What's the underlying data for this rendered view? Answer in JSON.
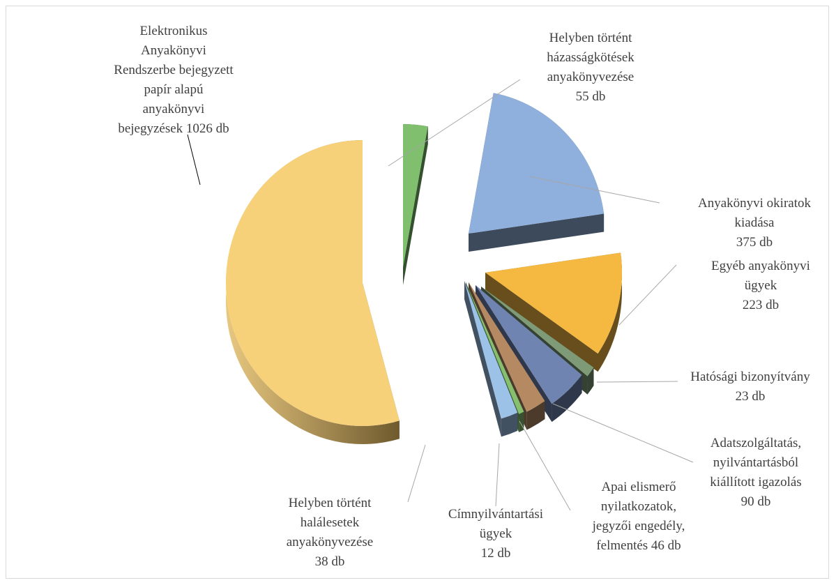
{
  "chart_data": {
    "type": "pie",
    "style": "3d-exploded",
    "legend": "none",
    "slices": [
      {
        "lines": [
          "Helyben történt",
          "házasságkötések",
          "anyakönyvezése",
          "55 db"
        ],
        "value": 55,
        "color": "#7fbf6e"
      },
      {
        "lines": [
          "Anyakönyvi okiratok",
          "kiadása",
          "375 db"
        ],
        "value": 375,
        "color": "#8fb0dc"
      },
      {
        "lines": [
          "Egyéb anyakönyvi",
          "ügyek",
          "223 db"
        ],
        "value": 223,
        "color": "#f5b942"
      },
      {
        "lines": [
          "Hatósági bizonyítvány",
          "23 db"
        ],
        "value": 23,
        "color": "#7f9a76"
      },
      {
        "lines": [
          "Adatszolgáltatás,",
          "nyilvántartásból",
          "kiállított igazolás",
          "90 db"
        ],
        "value": 90,
        "color": "#6f84b0"
      },
      {
        "lines": [
          "Apai elismerő",
          "nyilatkozatok,",
          "jegyzői engedély,",
          "felmentés 46 db"
        ],
        "value": 46,
        "color": "#b58a63"
      },
      {
        "lines": [
          "Címnyilvántartási",
          "ügyek",
          "12 db"
        ],
        "value": 12,
        "color": "#86c06f"
      },
      {
        "lines": [
          "Helyben történt",
          "halálesetek",
          "anyakönyvezése",
          "38 db"
        ],
        "value": 38,
        "color": "#9dc2e8"
      },
      {
        "lines": [
          "Elektronikus",
          "Anyakönyvi",
          "Rendszerbe bejegyzett",
          "papír alapú",
          "anyakönyvi",
          "bejegyzések 1026 db"
        ],
        "value": 1026,
        "color": "#f7d179"
      }
    ]
  }
}
